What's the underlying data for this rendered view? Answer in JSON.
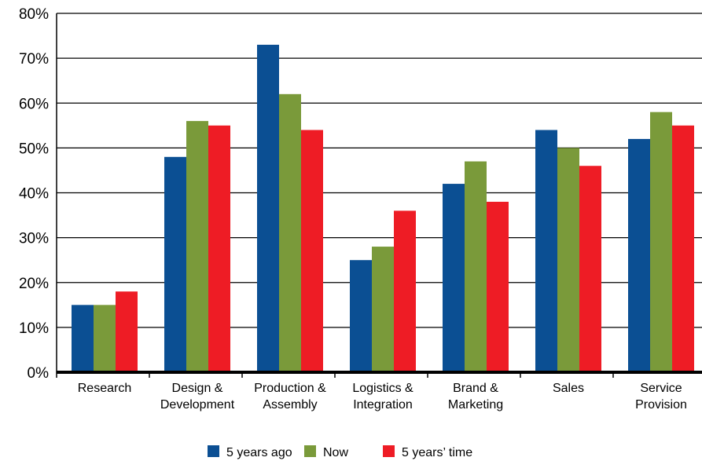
{
  "chart_data": {
    "type": "bar",
    "title": "",
    "xlabel": "",
    "ylabel": "",
    "ylim": [
      0,
      80
    ],
    "y_ticks": [
      0,
      10,
      20,
      30,
      40,
      50,
      60,
      70,
      80
    ],
    "y_tick_labels": [
      "0%",
      "10%",
      "20%",
      "30%",
      "40%",
      "50%",
      "60%",
      "70%",
      "80%"
    ],
    "grid": "horizontal",
    "legend_position": "bottom-center",
    "categories": [
      [
        "Research"
      ],
      [
        "Design &",
        "Development"
      ],
      [
        "Production &",
        "Assembly"
      ],
      [
        "Logistics &",
        "Integration"
      ],
      [
        "Brand &",
        "Marketing"
      ],
      [
        "Sales"
      ],
      [
        "Service",
        "Provision"
      ]
    ],
    "series": [
      {
        "name": "5 years ago",
        "color": "#0b4f93",
        "values": [
          15,
          48,
          73,
          25,
          42,
          54,
          52
        ]
      },
      {
        "name": "Now",
        "color": "#7a9a3a",
        "values": [
          15,
          56,
          62,
          28,
          47,
          50,
          58
        ]
      },
      {
        "name": "5 years’ time",
        "color": "#ee1c25",
        "values": [
          18,
          55,
          54,
          36,
          38,
          46,
          55
        ]
      }
    ]
  }
}
